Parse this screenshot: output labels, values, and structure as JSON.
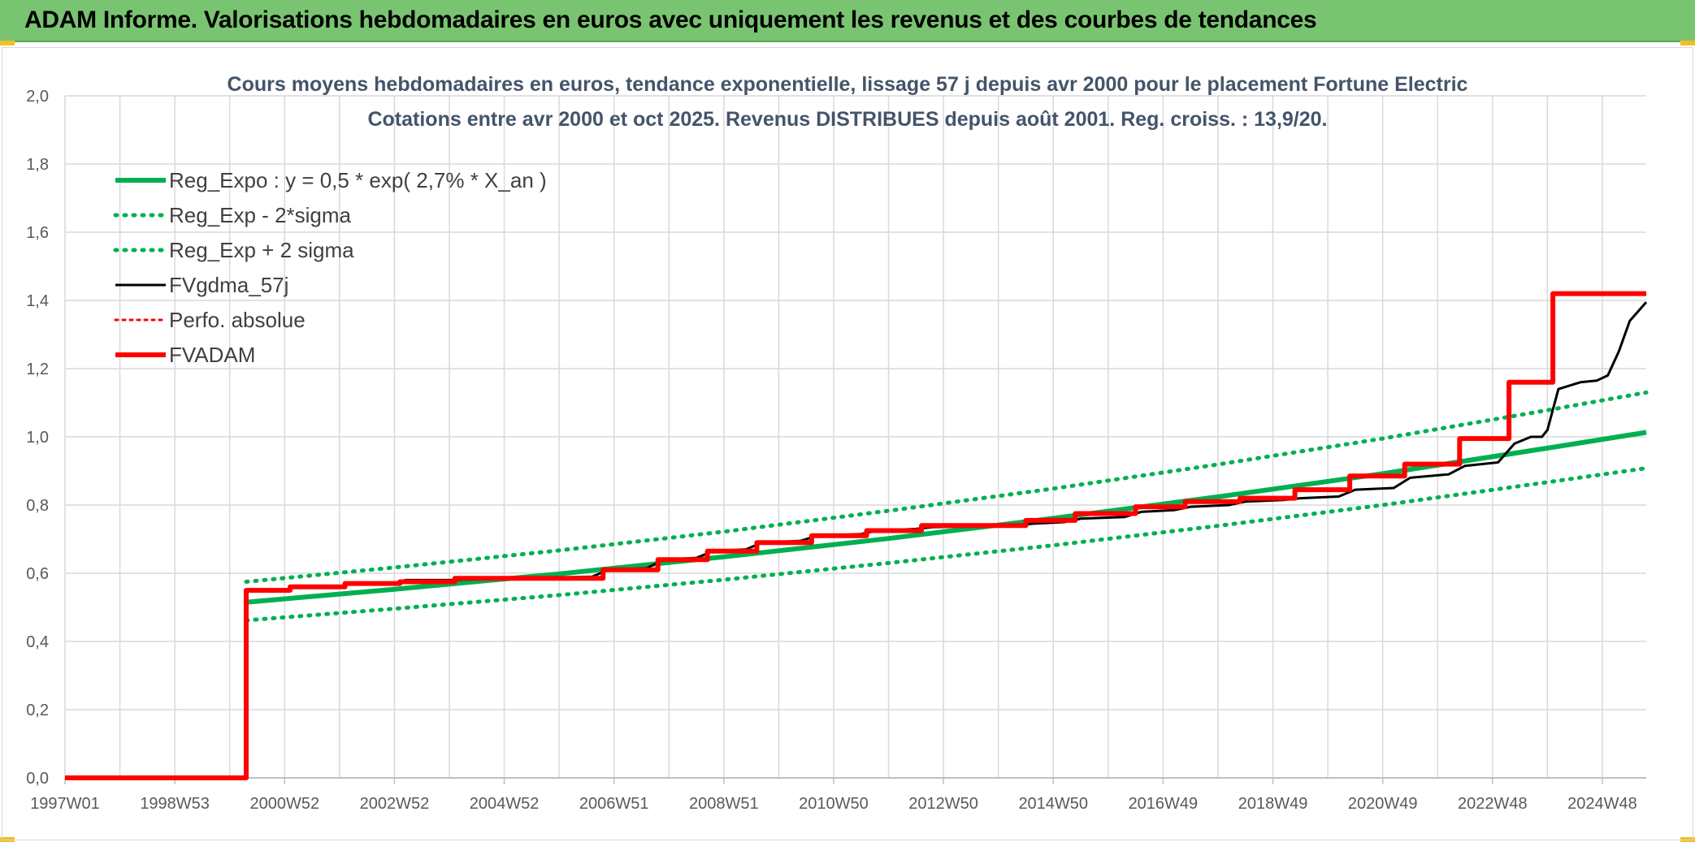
{
  "banner": {
    "title": "ADAM Informe. Valorisations hebdomadaires en euros avec uniquement les revenus et des courbes de tendances"
  },
  "colors": {
    "banner": "#79c471",
    "green": "#00b050",
    "red": "#ff0000",
    "black": "#000000",
    "grid": "#d9d9d9",
    "title": "#44546a"
  },
  "chart_data": {
    "type": "line",
    "title_lines": [
      "Cours moyens hebdomadaires en euros, tendance exponentielle, lissage 57 j depuis avr 2000 pour le placement Fortune Electric",
      "Cotations entre avr 2000 et oct 2025. Revenus DISTRIBUES depuis août 2001. Reg. croiss. : 13,9/20."
    ],
    "xlabel": "",
    "ylabel": "",
    "x_range": [
      1997.0,
      2025.8
    ],
    "ylim": [
      0,
      2.0
    ],
    "y_ticks": [
      "0,0",
      "0,2",
      "0,4",
      "0,6",
      "0,8",
      "1,0",
      "1,2",
      "1,4",
      "1,6",
      "1,8",
      "2,0"
    ],
    "x_ticks": [
      {
        "label": "1997W01",
        "x": 1997.0
      },
      {
        "label": "1998W53",
        "x": 1999.0
      },
      {
        "label": "2000W52",
        "x": 2001.0
      },
      {
        "label": "2002W52",
        "x": 2003.0
      },
      {
        "label": "2004W52",
        "x": 2005.0
      },
      {
        "label": "2006W51",
        "x": 2007.0
      },
      {
        "label": "2008W51",
        "x": 2009.0
      },
      {
        "label": "2010W50",
        "x": 2011.0
      },
      {
        "label": "2012W50",
        "x": 2013.0
      },
      {
        "label": "2014W50",
        "x": 2015.0
      },
      {
        "label": "2016W49",
        "x": 2017.0
      },
      {
        "label": "2018W49",
        "x": 2019.0
      },
      {
        "label": "2020W49",
        "x": 2021.0
      },
      {
        "label": "2022W48",
        "x": 2023.0
      },
      {
        "label": "2024W48",
        "x": 2025.0
      }
    ],
    "grid": true,
    "legend_position": "top-left",
    "series": [
      {
        "name": "Reg_Expo : y = 0,5 * exp( 2,7% *  X_an )",
        "color": "#00b050",
        "style": "solid",
        "width": 6,
        "x": [
          2000.3,
          2003,
          2006,
          2009,
          2012,
          2015,
          2018,
          2021,
          2024,
          2025.8
        ],
        "y": [
          0.515,
          0.553,
          0.598,
          0.648,
          0.702,
          0.761,
          0.824,
          0.892,
          0.967,
          1.013
        ]
      },
      {
        "name": "Reg_Exp - 2*sigma",
        "color": "#00b050",
        "style": "dotted",
        "width": 5,
        "x": [
          2000.3,
          2003,
          2006,
          2009,
          2012,
          2015,
          2018,
          2021,
          2024,
          2025.8
        ],
        "y": [
          0.462,
          0.496,
          0.536,
          0.581,
          0.63,
          0.682,
          0.739,
          0.8,
          0.867,
          0.908
        ]
      },
      {
        "name": "Reg_Exp + 2 sigma",
        "color": "#00b050",
        "style": "dotted",
        "width": 5,
        "x": [
          2000.3,
          2003,
          2006,
          2009,
          2012,
          2015,
          2018,
          2021,
          2024,
          2025.8
        ],
        "y": [
          0.575,
          0.617,
          0.667,
          0.722,
          0.783,
          0.848,
          0.919,
          0.995,
          1.078,
          1.13
        ]
      },
      {
        "name": "FVgdma_57j",
        "color": "#000000",
        "style": "solid",
        "width": 3,
        "x": [
          1997.0,
          2000.3,
          2000.31,
          2001.0,
          2001.2,
          2002.0,
          2002.2,
          2003.0,
          2003.2,
          2004.0,
          2006.6,
          2006.9,
          2007.6,
          2007.9,
          2008.5,
          2008.8,
          2009.4,
          2009.7,
          2010.4,
          2010.7,
          2011.5,
          2011.8,
          2012.5,
          2012.8,
          2014.3,
          2014.6,
          2015.2,
          2015.5,
          2016.3,
          2016.6,
          2017.2,
          2017.5,
          2018.2,
          2018.5,
          2019.2,
          2019.5,
          2020.2,
          2020.5,
          2021.2,
          2021.5,
          2022.2,
          2022.5,
          2023.1,
          2023.4,
          2023.7,
          2023.9,
          2024.0,
          2024.2,
          2024.6,
          2024.9,
          2025.1,
          2025.3,
          2025.5,
          2025.8
        ],
        "y": [
          0.0,
          0.0,
          0.55,
          0.55,
          0.56,
          0.56,
          0.57,
          0.57,
          0.58,
          0.58,
          0.59,
          0.61,
          0.615,
          0.64,
          0.645,
          0.665,
          0.67,
          0.69,
          0.695,
          0.71,
          0.715,
          0.725,
          0.73,
          0.735,
          0.74,
          0.745,
          0.75,
          0.76,
          0.765,
          0.78,
          0.785,
          0.795,
          0.8,
          0.81,
          0.815,
          0.82,
          0.825,
          0.845,
          0.85,
          0.88,
          0.89,
          0.915,
          0.925,
          0.98,
          1.0,
          1.0,
          1.02,
          1.14,
          1.16,
          1.165,
          1.18,
          1.25,
          1.34,
          1.395
        ]
      },
      {
        "name": "Perfo. absolue",
        "color": "#ff0000",
        "style": "dotted",
        "width": 3,
        "x": [],
        "y": []
      },
      {
        "name": "FVADAM",
        "color": "#ff0000",
        "style": "solid",
        "width": 6,
        "x": [
          1997.0,
          2000.3,
          2000.3,
          2001.1,
          2001.1,
          2002.1,
          2002.1,
          2003.1,
          2003.1,
          2004.1,
          2004.1,
          2006.8,
          2006.8,
          2007.8,
          2007.8,
          2008.7,
          2008.7,
          2009.6,
          2009.6,
          2010.6,
          2010.6,
          2011.6,
          2011.6,
          2012.6,
          2012.6,
          2014.5,
          2014.5,
          2015.4,
          2015.4,
          2016.5,
          2016.5,
          2017.4,
          2017.4,
          2018.4,
          2018.4,
          2019.4,
          2019.4,
          2020.4,
          2020.4,
          2021.4,
          2021.4,
          2022.4,
          2022.4,
          2023.3,
          2023.3,
          2024.1,
          2024.1,
          2025.6,
          2025.6,
          2025.8
        ],
        "y": [
          0.0,
          0.0,
          0.55,
          0.55,
          0.56,
          0.56,
          0.57,
          0.57,
          0.575,
          0.575,
          0.585,
          0.585,
          0.61,
          0.61,
          0.64,
          0.64,
          0.665,
          0.665,
          0.69,
          0.69,
          0.71,
          0.71,
          0.725,
          0.725,
          0.74,
          0.74,
          0.755,
          0.755,
          0.775,
          0.775,
          0.795,
          0.795,
          0.81,
          0.81,
          0.82,
          0.82,
          0.845,
          0.845,
          0.885,
          0.885,
          0.92,
          0.92,
          0.995,
          0.995,
          1.16,
          1.16,
          1.42,
          1.42,
          1.42,
          1.42
        ]
      }
    ]
  }
}
